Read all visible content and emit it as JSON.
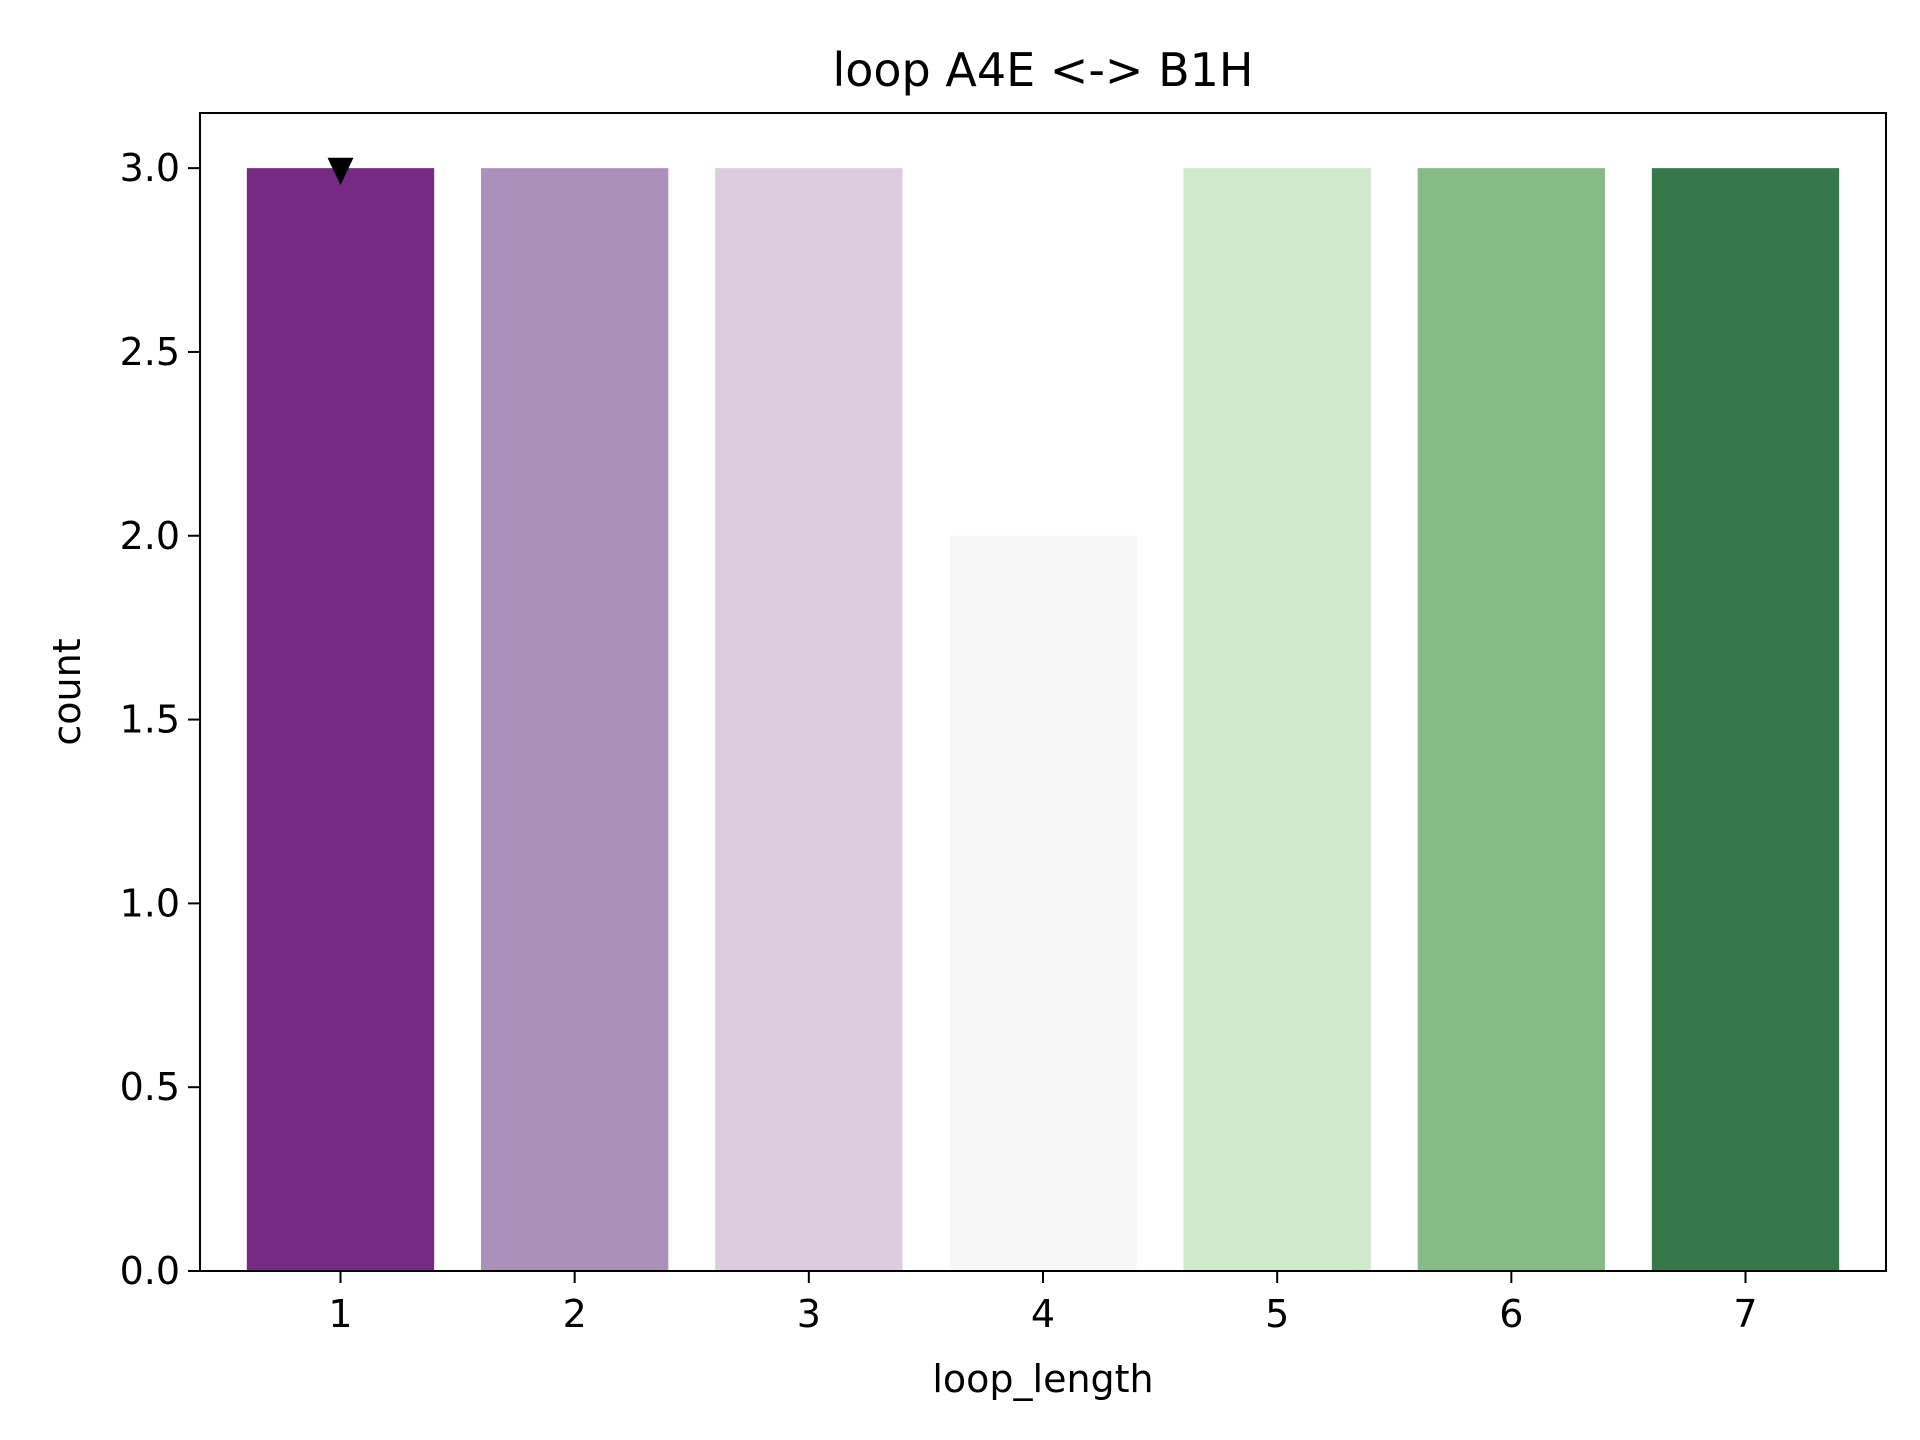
{
  "chart_data": {
    "type": "bar",
    "title": "loop A4E <-> B1H",
    "xlabel": "loop_length",
    "ylabel": "count",
    "categories": [
      "1",
      "2",
      "3",
      "4",
      "5",
      "6",
      "7"
    ],
    "values": [
      3,
      3,
      3,
      2,
      3,
      3,
      3
    ],
    "colors": [
      "#762a83",
      "#ab91ba",
      "#dccce0",
      "#f7f7f7",
      "#d0e9cd",
      "#87bb86",
      "#35784a"
    ],
    "ylim": [
      0,
      3.15
    ],
    "yticks": [
      "0.0",
      "0.5",
      "1.0",
      "1.5",
      "2.0",
      "2.5",
      "3.0"
    ],
    "ytick_values": [
      0,
      0.5,
      1.0,
      1.5,
      2.0,
      2.5,
      3.0
    ],
    "marker": {
      "category": "1",
      "value": 3,
      "shape": "triangle-down",
      "color": "#000000"
    },
    "grid": false,
    "legend": "none"
  }
}
